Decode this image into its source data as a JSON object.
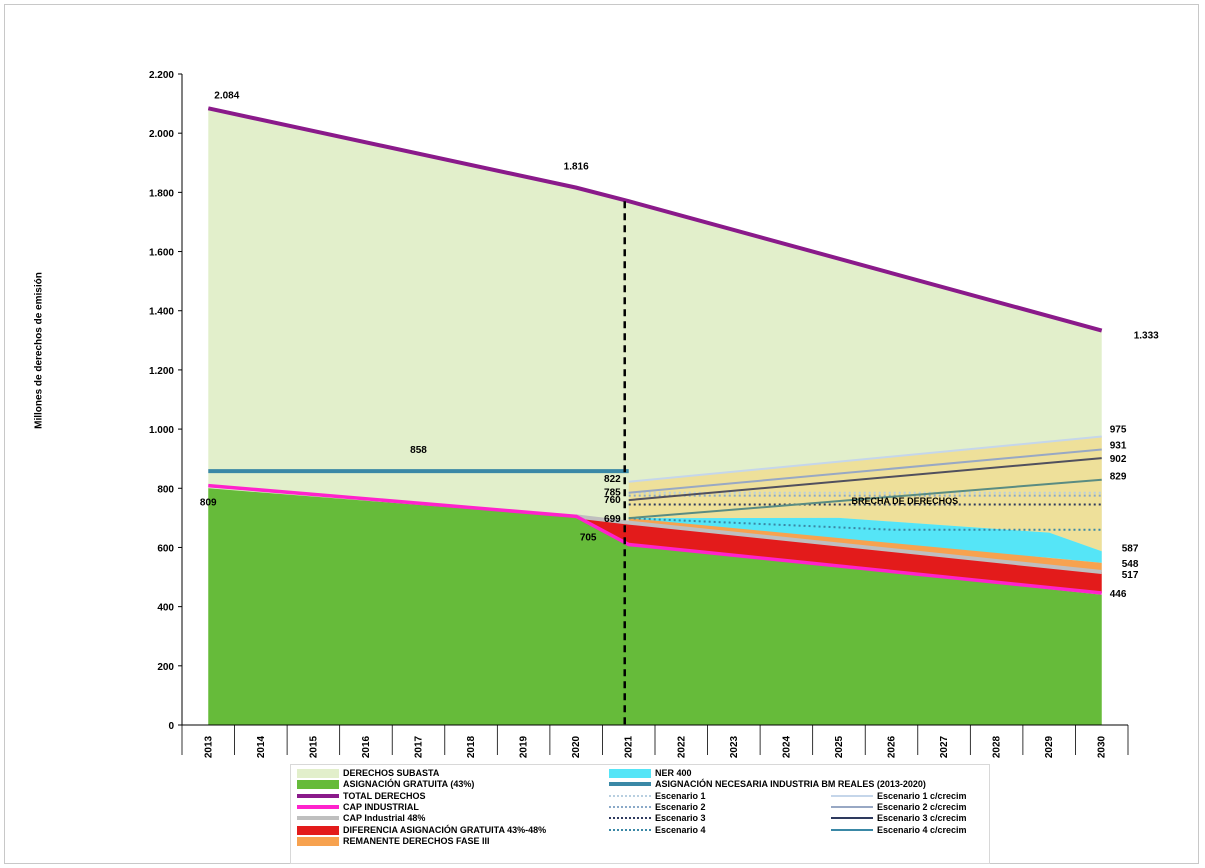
{
  "chart_data": {
    "type": "area",
    "ylabel": "Millones de derechos de emisión",
    "xlabel": "",
    "ylim": [
      0,
      2200
    ],
    "yticks": [
      0,
      200,
      400,
      600,
      800,
      1000,
      1200,
      1400,
      1600,
      1800,
      2000,
      2200
    ],
    "ytick_labels": [
      "0",
      "200",
      "400",
      "600",
      "800",
      "1.000",
      "1.200",
      "1.400",
      "1.600",
      "1.800",
      "2.000",
      "2.200"
    ],
    "x": [
      "2013",
      "2014",
      "2015",
      "2016",
      "2017",
      "2018",
      "2019",
      "2020",
      "2021",
      "2022",
      "2023",
      "2024",
      "2025",
      "2026",
      "2027",
      "2028",
      "2029",
      "2030"
    ],
    "divider_year": "2021",
    "series": [
      {
        "name": "TOTAL DERECHOS",
        "kind": "line",
        "color": "#8a1a8a",
        "x": [
          "2013",
          "2020",
          "2021",
          "2030"
        ],
        "values": [
          2084,
          1816,
          1770,
          1333
        ]
      },
      {
        "name": "ASIGNACIÓN GRATUITA (43%)",
        "kind": "area",
        "color": "#66bb3a",
        "x": [
          "2013",
          "2020",
          "2021",
          "2030"
        ],
        "values": [
          800,
          702,
          610,
          440
        ]
      },
      {
        "name": "CAP INDUSTRIAL",
        "kind": "line",
        "color": "#ff22cc",
        "x": [
          "2013",
          "2020",
          "2021",
          "2030"
        ],
        "values": [
          809,
          705,
          610,
          446
        ]
      },
      {
        "name": "CAP Industrial 48%",
        "kind": "line",
        "color": "#bfbfbf",
        "x": [
          "2020",
          "2021",
          "2030"
        ],
        "values": [
          705,
          684,
          517
        ]
      },
      {
        "name": "DIFERENCIA ASIGNACIÓN GRATUITA 43%-48%",
        "kind": "band",
        "color": "#e31b1b",
        "x": [
          "2020",
          "2021",
          "2030"
        ],
        "lower": [
          705,
          610,
          446
        ],
        "upper": [
          705,
          684,
          517
        ]
      },
      {
        "name": "REMANENTE DERECHOS FASE III",
        "kind": "band",
        "color": "#f7a24f",
        "x": [
          "2021",
          "2030"
        ],
        "lower": [
          684,
          517
        ],
        "upper": [
          699,
          548
        ]
      },
      {
        "name": "NER 400",
        "kind": "band",
        "color": "#55e5f7",
        "x": [
          "2021",
          "2025",
          "2029",
          "2030"
        ],
        "lower": [
          699,
          620,
          565,
          548
        ],
        "upper": [
          699,
          700,
          650,
          587
        ]
      },
      {
        "name": "ASIGNACIÓN NECESARIA INDUSTRIA BM REALES (2013-2020)",
        "kind": "line",
        "color": "#3a88a6",
        "x": [
          "2013",
          "2021"
        ],
        "values": [
          858,
          858
        ]
      },
      {
        "name": "Escenario 1",
        "kind": "dotted",
        "color": "#b8cfe0",
        "x": [
          "2021",
          "2030"
        ],
        "values": [
          785,
          785
        ]
      },
      {
        "name": "Escenario 2",
        "kind": "dotted",
        "color": "#8aa9c8",
        "x": [
          "2021",
          "2030"
        ],
        "values": [
          775,
          775
        ]
      },
      {
        "name": "Escenario 3",
        "kind": "dotted",
        "color": "#2e3a5e",
        "x": [
          "2021",
          "2030"
        ],
        "values": [
          745,
          745
        ]
      },
      {
        "name": "Escenario 4",
        "kind": "dotted",
        "color": "#3a88a6",
        "x": [
          "2021",
          "2026",
          "2030"
        ],
        "values": [
          699,
          660,
          660
        ]
      },
      {
        "name": "Escenario 1 c/crecim",
        "kind": "line",
        "color": "#c5d6ea",
        "x": [
          "2021",
          "2030"
        ],
        "values": [
          822,
          975
        ]
      },
      {
        "name": "Escenario 2 c/crecim",
        "kind": "line",
        "color": "#98a8c4",
        "x": [
          "2021",
          "2030"
        ],
        "values": [
          785,
          931
        ]
      },
      {
        "name": "Escenario 3 c/crecim",
        "kind": "line",
        "color": "#50505e",
        "x": [
          "2021",
          "2030"
        ],
        "values": [
          760,
          902
        ]
      },
      {
        "name": "Escenario 4 c/crecim",
        "kind": "line",
        "color": "#5a8c82",
        "x": [
          "2021",
          "2030"
        ],
        "values": [
          699,
          829
        ]
      }
    ],
    "fills": {
      "derechos_subasta": "#e2efcb",
      "brecha": "#eee09a"
    },
    "annotations": [
      {
        "text": "2.084",
        "x": "2013",
        "y": 2084
      },
      {
        "text": "1.816",
        "x": "2020",
        "y": 1816
      },
      {
        "text": "1.333",
        "x": "2030",
        "y": 1333
      },
      {
        "text": "858",
        "x": "2017",
        "y": 858
      },
      {
        "text": "809",
        "x": "2013",
        "y": 809
      },
      {
        "text": "705",
        "x": "2020",
        "y": 705
      },
      {
        "text": "822",
        "x": "2021",
        "y": 822
      },
      {
        "text": "785",
        "x": "2021",
        "y": 785
      },
      {
        "text": "760",
        "x": "2021",
        "y": 760
      },
      {
        "text": "699",
        "x": "2021",
        "y": 699
      },
      {
        "text": "975",
        "x": "2030",
        "y": 975
      },
      {
        "text": "931",
        "x": "2030",
        "y": 931
      },
      {
        "text": "902",
        "x": "2030",
        "y": 902
      },
      {
        "text": "829",
        "x": "2030",
        "y": 829
      },
      {
        "text": "587",
        "x": "2030",
        "y": 587
      },
      {
        "text": "548",
        "x": "2030",
        "y": 548
      },
      {
        "text": "517",
        "x": "2030",
        "y": 517
      },
      {
        "text": "446",
        "x": "2030",
        "y": 446
      },
      {
        "text": "BRECHA DE DERECHOS",
        "x": "2026",
        "y": 760
      }
    ],
    "legend": [
      {
        "label": "DERECHOS SUBASTA",
        "style": "swatch",
        "color": "#e2efcb"
      },
      {
        "label": "NER 400",
        "style": "swatch",
        "color": "#55e5f7"
      },
      {
        "label": "ASIGNACIÓN GRATUITA (43%)",
        "style": "swatch",
        "color": "#66bb3a"
      },
      {
        "label": "ASIGNACIÓN NECESARIA INDUSTRIA BM REALES (2013-2020)",
        "style": "line",
        "color": "#3a88a6"
      },
      {
        "label": "TOTAL DERECHOS",
        "style": "line",
        "color": "#8a1a8a"
      },
      {
        "label": "Escenario 1",
        "style": "dotted",
        "color": "#b8cfe0"
      },
      {
        "label": "Escenario 1 c/crecim",
        "style": "thin",
        "color": "#c5d6ea"
      },
      {
        "label": "CAP INDUSTRIAL",
        "style": "line",
        "color": "#ff22cc"
      },
      {
        "label": "Escenario 2",
        "style": "dotted",
        "color": "#8aa9c8"
      },
      {
        "label": "Escenario 2 c/crecim",
        "style": "thin",
        "color": "#98a8c4"
      },
      {
        "label": "CAP Industrial 48%",
        "style": "line",
        "color": "#bfbfbf"
      },
      {
        "label": "Escenario 3",
        "style": "dotted",
        "color": "#2e3a5e"
      },
      {
        "label": "Escenario 3 c/crecim",
        "style": "thin",
        "color": "#2e3a5e"
      },
      {
        "label": "DIFERENCIA ASIGNACIÓN GRATUITA 43%-48%",
        "style": "swatch",
        "color": "#e31b1b"
      },
      {
        "label": "Escenario 4",
        "style": "dotted",
        "color": "#3a88a6"
      },
      {
        "label": "Escenario 4 c/crecim",
        "style": "thin",
        "color": "#3a88a6"
      },
      {
        "label": "REMANENTE DERECHOS FASE III",
        "style": "swatch",
        "color": "#f7a24f"
      }
    ]
  }
}
